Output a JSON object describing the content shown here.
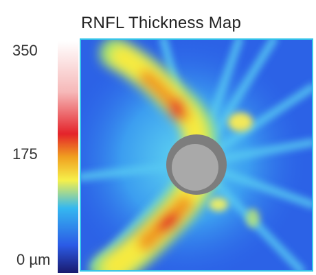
{
  "chart_data": {
    "type": "heatmap",
    "title": "RNFL Thickness Map",
    "colorbar": {
      "min": 0,
      "mid": 175,
      "max": 350,
      "unit": "µm",
      "ticks": [
        "350",
        "175",
        "0 µm"
      ],
      "colors": [
        "#1a1a6e",
        "#2b5be6",
        "#35b8f0",
        "#f6f04a",
        "#f0a020",
        "#e4232a",
        "#f6b0b0",
        "#ffffff"
      ]
    },
    "regions": [
      {
        "name": "superior-arcuate band",
        "value_range": [
          200,
          260
        ]
      },
      {
        "name": "inferior-arcuate band",
        "value_range": [
          220,
          280
        ]
      },
      {
        "name": "optic disc",
        "value": null
      }
    ]
  }
}
